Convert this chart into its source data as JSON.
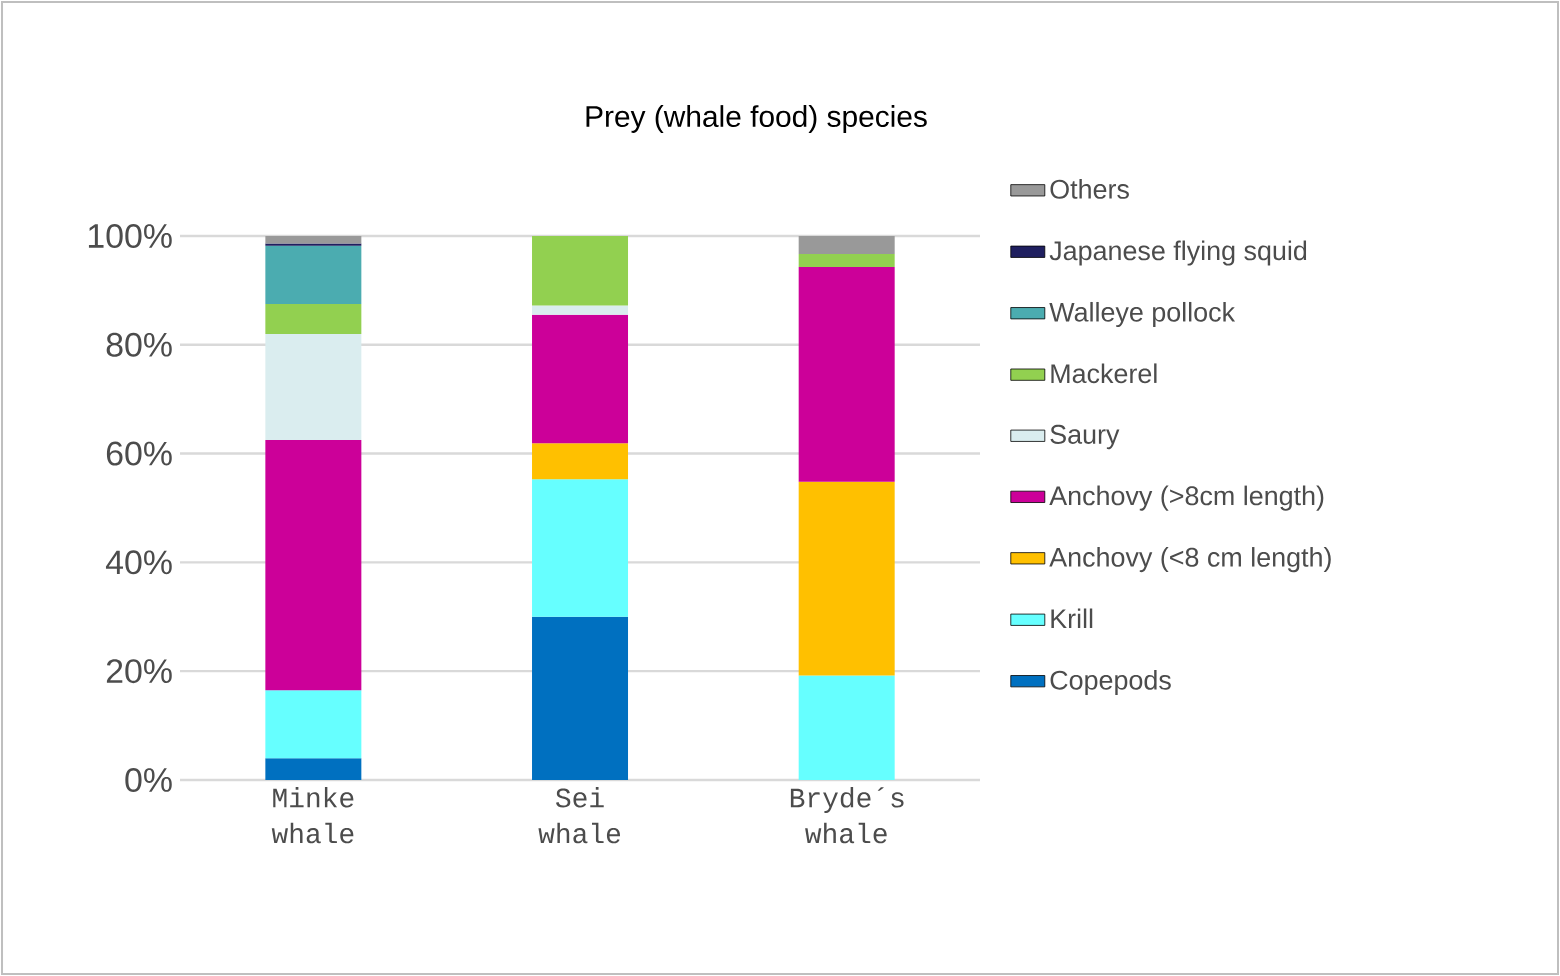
{
  "chart_data": {
    "type": "bar",
    "stacked": true,
    "title": "Prey (whale food) species",
    "categories": [
      "Minke whale",
      "Sei whale",
      "Bryde´s whale"
    ],
    "series": [
      {
        "name": "Copepods",
        "color": "#0070c0",
        "values": [
          4,
          30,
          null
        ]
      },
      {
        "name": "Krill",
        "color": "#66ffff",
        "values": [
          12.5,
          25.3,
          19.2
        ]
      },
      {
        "name": "Anchovy (<8 cm length)",
        "color": "#ffc000",
        "values": [
          null,
          6.6,
          35.6
        ]
      },
      {
        "name": "Anchovy (>8cm length)",
        "color": "#cc0099",
        "values": [
          46,
          23.6,
          39.5
        ]
      },
      {
        "name": "Saury",
        "color": "#daedef",
        "values": [
          19.5,
          1.7,
          null
        ]
      },
      {
        "name": "Mackerel",
        "color": "#92d050",
        "values": [
          5.5,
          12.8,
          2.4
        ]
      },
      {
        "name": "Walleye pollock",
        "color": "#4bacb0",
        "values": [
          10.7,
          null,
          null
        ]
      },
      {
        "name": "Japanese flying squid",
        "color": "#1f1f5f",
        "values": [
          0.4,
          null,
          null
        ]
      },
      {
        "name": "Others",
        "color": "#999999",
        "values": [
          1.4,
          null,
          3.3
        ]
      }
    ],
    "ylim": [
      0,
      100
    ],
    "yticks": [
      {
        "value": 0,
        "label": "0%"
      },
      {
        "value": 20,
        "label": "20%"
      },
      {
        "value": 40,
        "label": "40%"
      },
      {
        "value": 60,
        "label": "60%"
      },
      {
        "value": 80,
        "label": "80%"
      },
      {
        "value": 100,
        "label": "100%"
      }
    ],
    "grid": "y",
    "legend": "right"
  }
}
